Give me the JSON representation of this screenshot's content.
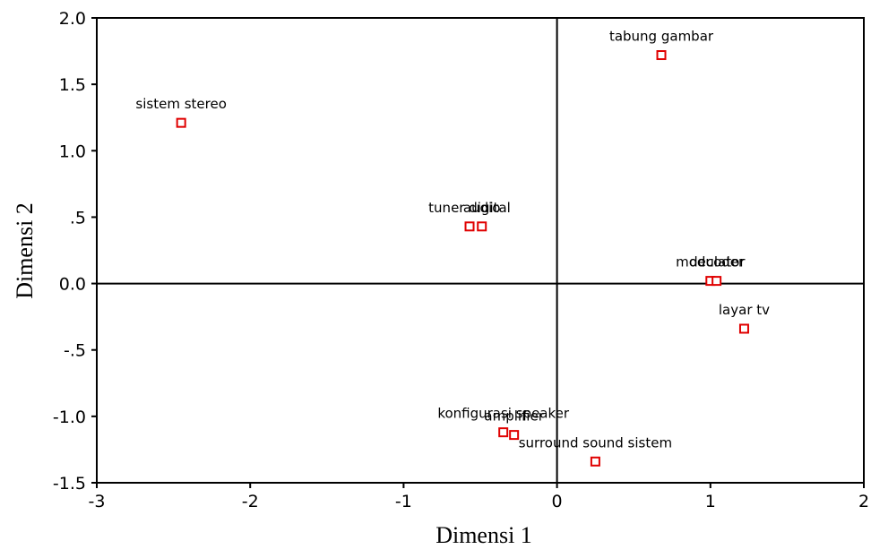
{
  "chart_data": {
    "type": "scatter",
    "title": "",
    "xlabel": "Dimensi 1",
    "ylabel": "Dimensi 2",
    "xlim": [
      -3,
      2
    ],
    "ylim": [
      -1.5,
      2.0
    ],
    "x_ticks": [
      {
        "value": -3,
        "label": "-3"
      },
      {
        "value": -2,
        "label": "-2"
      },
      {
        "value": -1,
        "label": "-1"
      },
      {
        "value": 0,
        "label": "0"
      },
      {
        "value": 1,
        "label": "1"
      },
      {
        "value": 2,
        "label": "2"
      }
    ],
    "y_ticks": [
      {
        "value": 2.0,
        "label": "2.0"
      },
      {
        "value": 1.5,
        "label": "1.5"
      },
      {
        "value": 1.0,
        "label": "1.0"
      },
      {
        "value": 0.5,
        "label": ".5"
      },
      {
        "value": 0.0,
        "label": "0.0"
      },
      {
        "value": -0.5,
        "label": "-.5"
      },
      {
        "value": -1.0,
        "label": "-1.0"
      },
      {
        "value": -1.5,
        "label": "-1.5"
      }
    ],
    "reference_lines": {
      "x": 0,
      "y": 0
    },
    "marker_color": "#e00000",
    "points": [
      {
        "label": "sistem stereo",
        "x": -2.45,
        "y": 1.21
      },
      {
        "label": "tabung gambar",
        "x": 0.68,
        "y": 1.72
      },
      {
        "label": "tuner digital",
        "x": -0.57,
        "y": 0.43
      },
      {
        "label": "audio",
        "x": -0.49,
        "y": 0.43
      },
      {
        "label": "modulator",
        "x": 1.0,
        "y": 0.02
      },
      {
        "label": "decoder",
        "x": 1.04,
        "y": 0.02
      },
      {
        "label": "layar tv",
        "x": 1.22,
        "y": -0.34
      },
      {
        "label": "konfigurasi speaker",
        "x": -0.35,
        "y": -1.12
      },
      {
        "label": "amplifier",
        "x": -0.28,
        "y": -1.14
      },
      {
        "label": "surround sound sistem",
        "x": 0.25,
        "y": -1.34
      }
    ]
  }
}
